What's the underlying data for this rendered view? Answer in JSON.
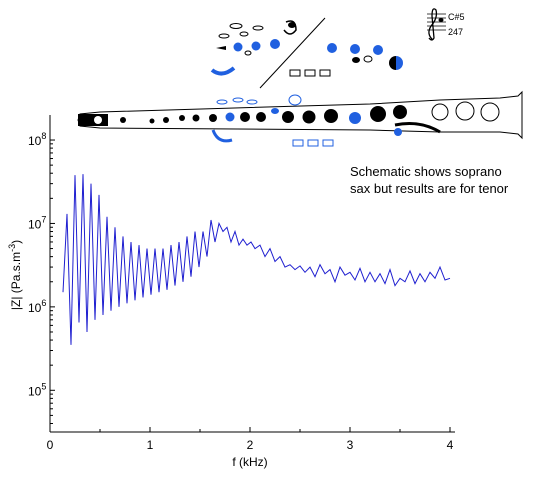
{
  "note": {
    "title": "C#5",
    "number": "247"
  },
  "annotation": {
    "line1": "Schematic shows soprano",
    "line2": "sax but results are for tenor"
  },
  "chart_data": {
    "type": "line",
    "title": "",
    "xlabel": "f (kHz)",
    "ylabel": "|Z| (Pa.s.m",
    "ylabel_superscript": "-3",
    "ylabel_close": ")",
    "xlim": [
      0,
      4
    ],
    "ylim_log10": [
      4.5,
      8.3
    ],
    "y_scale": "log",
    "x_ticks": [
      {
        "value": 0,
        "label": "0"
      },
      {
        "value": 1,
        "label": "1"
      },
      {
        "value": 2,
        "label": "2"
      },
      {
        "value": 3,
        "label": "3"
      },
      {
        "value": 4,
        "label": "4"
      }
    ],
    "y_ticks": [
      {
        "value": 100000,
        "mantissa": "10",
        "exponent": "5"
      },
      {
        "value": 1000000,
        "mantissa": "10",
        "exponent": "6"
      },
      {
        "value": 10000000,
        "mantissa": "10",
        "exponent": "7"
      },
      {
        "value": 100000000,
        "mantissa": "10",
        "exponent": "8"
      }
    ],
    "series_color": "#1f1fd0",
    "series": [
      {
        "name": "",
        "x": [
          0.13,
          0.17,
          0.21,
          0.25,
          0.29,
          0.33,
          0.37,
          0.41,
          0.45,
          0.49,
          0.53,
          0.57,
          0.61,
          0.65,
          0.69,
          0.73,
          0.77,
          0.81,
          0.85,
          0.89,
          0.93,
          0.97,
          1.01,
          1.05,
          1.09,
          1.13,
          1.17,
          1.21,
          1.25,
          1.29,
          1.33,
          1.37,
          1.41,
          1.45,
          1.49,
          1.53,
          1.57,
          1.61,
          1.65,
          1.69,
          1.73,
          1.77,
          1.81,
          1.85,
          1.89,
          1.93,
          1.97,
          2.01,
          2.05,
          2.1,
          2.15,
          2.2,
          2.25,
          2.3,
          2.35,
          2.4,
          2.45,
          2.5,
          2.55,
          2.6,
          2.65,
          2.7,
          2.75,
          2.8,
          2.85,
          2.9,
          2.95,
          3.0,
          3.05,
          3.1,
          3.15,
          3.2,
          3.25,
          3.3,
          3.35,
          3.4,
          3.45,
          3.5,
          3.55,
          3.6,
          3.65,
          3.7,
          3.75,
          3.8,
          3.85,
          3.9,
          3.95,
          4.0
        ],
        "y": [
          1500000,
          13000000,
          350000,
          38000000,
          650000,
          39000000,
          500000,
          30000000,
          700000,
          22000000,
          800000,
          12000000,
          900000,
          9000000,
          1000000,
          7000000,
          1100000,
          6000000,
          1200000,
          5500000,
          1300000,
          5000000,
          1400000,
          5000000,
          1500000,
          5000000,
          1600000,
          5500000,
          1800000,
          6000000,
          2000000,
          7000000,
          2300000,
          8000000,
          3000000,
          8000000,
          4000000,
          11000000,
          6000000,
          10000000,
          8000000,
          9000000,
          6000000,
          8000000,
          5500000,
          6500000,
          5500000,
          6000000,
          5000000,
          5500000,
          4000000,
          5000000,
          3500000,
          4000000,
          3000000,
          3200000,
          2800000,
          3100000,
          2600000,
          3000000,
          2300000,
          3200000,
          2500000,
          2800000,
          2000000,
          3000000,
          2400000,
          2600000,
          2100000,
          2900000,
          2000000,
          2600000,
          2000000,
          2500000,
          1900000,
          2800000,
          1800000,
          2200000,
          2000000,
          2700000,
          1900000,
          2500000,
          2000000,
          2600000,
          2200000,
          3000000,
          2100000,
          2200000
        ]
      }
    ]
  },
  "schematic": {
    "line_color": "#000000",
    "key_color": "#2060e0"
  }
}
